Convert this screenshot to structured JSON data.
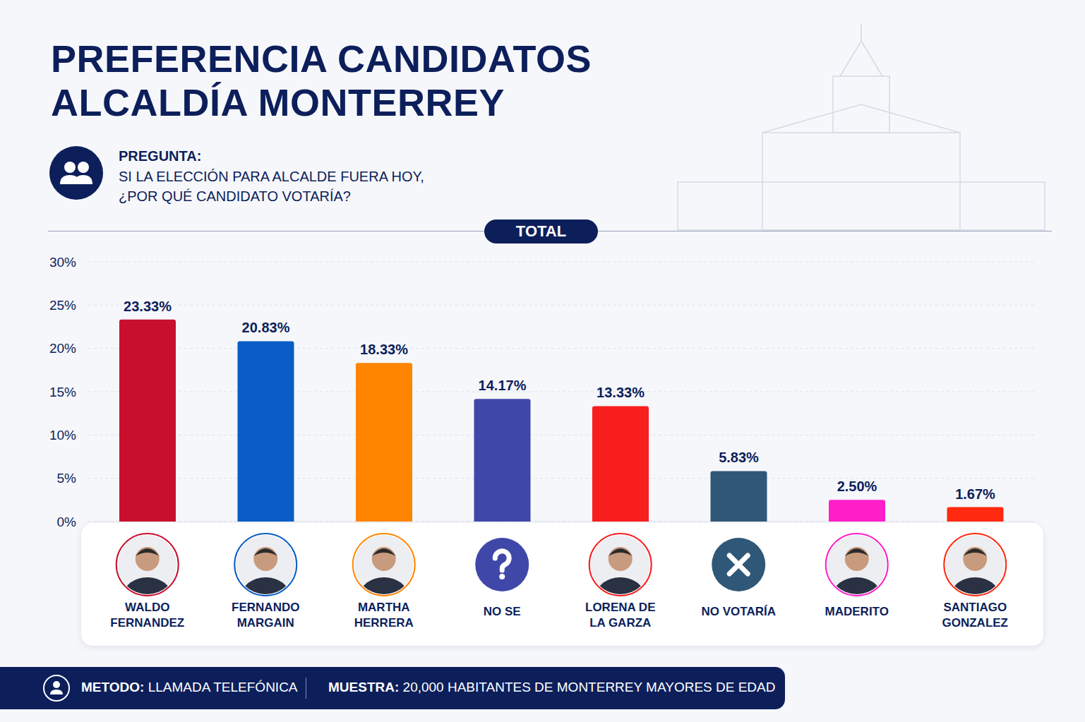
{
  "chart_data": {
    "type": "bar",
    "title": "PREFERENCIA CANDIDATOS ALCALDÍA MONTERREY",
    "question_label": "PREGUNTA:",
    "question": "SI LA ELECCIÓN PARA ALCALDE FUERA HOY, ¿POR QUÉ CANDIDATO VOTARÍA?",
    "panel_label": "TOTAL",
    "categories": [
      "WALDO FERNANDEZ",
      "FERNANDO MARGAIN",
      "MARTHA HERRERA",
      "NO SE",
      "LORENA DE LA GARZA",
      "NO VOTARÍA",
      "MADERITO",
      "SANTIAGO GONZALEZ"
    ],
    "values": [
      23.33,
      20.83,
      18.33,
      14.17,
      13.33,
      5.83,
      2.5,
      1.67
    ],
    "value_labels": [
      "23.33%",
      "20.83%",
      "18.33%",
      "14.17%",
      "13.33%",
      "5.83%",
      "2.50%",
      "1.67%"
    ],
    "colors": [
      "#c8102e",
      "#0a5cc7",
      "#ff8500",
      "#3f48a8",
      "#f81e1e",
      "#2f5878",
      "#ff1ec8",
      "#ff2a10"
    ],
    "ylim": [
      0,
      30
    ],
    "yticks": [
      {
        "value": 0,
        "label": "0%"
      },
      {
        "value": 5,
        "label": "5%"
      },
      {
        "value": 10,
        "label": "10%"
      },
      {
        "value": 15,
        "label": "15%"
      },
      {
        "value": 20,
        "label": "20%"
      },
      {
        "value": 25,
        "label": "25%"
      },
      {
        "value": 30,
        "label": "30%"
      }
    ],
    "grid": true,
    "data_labels": true,
    "footer": {
      "method_label": "METODO:",
      "method": "LLAMADA TELEFÓNICA",
      "sample_label": "MUESTRA:",
      "sample": "20,000 HABITANTES DE MONTERREY MAYORES DE EDAD"
    }
  }
}
